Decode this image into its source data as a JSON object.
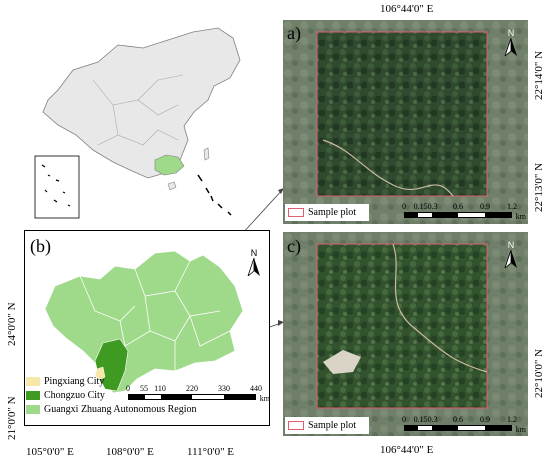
{
  "panels": {
    "a": "a)",
    "b": "(b)",
    "c": "c)"
  },
  "top_coords": {
    "lon_a": "106°44'0\" E",
    "lat_a_top": "22°14'0\" N",
    "lat_a_bottom": "22°13'0\" N",
    "lat_c": "22°10'0\" N",
    "lon_c": "106°44'0\" E"
  },
  "map_b_coords": {
    "lat_top": "24°0'0\" N",
    "lat_bottom": "21°0'0\" N",
    "lon_1": "105°0'0\" E",
    "lon_2": "108°0'0\" E",
    "lon_3": "111°0'0\" E"
  },
  "legend_b": {
    "items": [
      {
        "label": "Pingxiang City",
        "color": "#f7e7a8"
      },
      {
        "label": "Chongzuo City",
        "color": "#3f9a21"
      },
      {
        "label": "Guangxi Zhuang Autonomous Region",
        "color": "#9fd98a"
      }
    ]
  },
  "scale_b": {
    "labels": [
      "0",
      "55",
      "110",
      "220",
      "330",
      "440"
    ],
    "unit": "km"
  },
  "scale_img": {
    "labels": [
      "0",
      "0.150.3",
      "0.6",
      "0.9",
      "1.2"
    ],
    "unit": "km"
  },
  "sample_plot_label": "Sample plot",
  "north_label": "N",
  "colors": {
    "china_fill": "#e8e8e8",
    "china_stroke": "#808080",
    "guangxi_highlight": "#9fd98a",
    "chongzuo": "#3f9a21",
    "pingxiang": "#f7e7a8",
    "plot_outline": "#e06070"
  }
}
